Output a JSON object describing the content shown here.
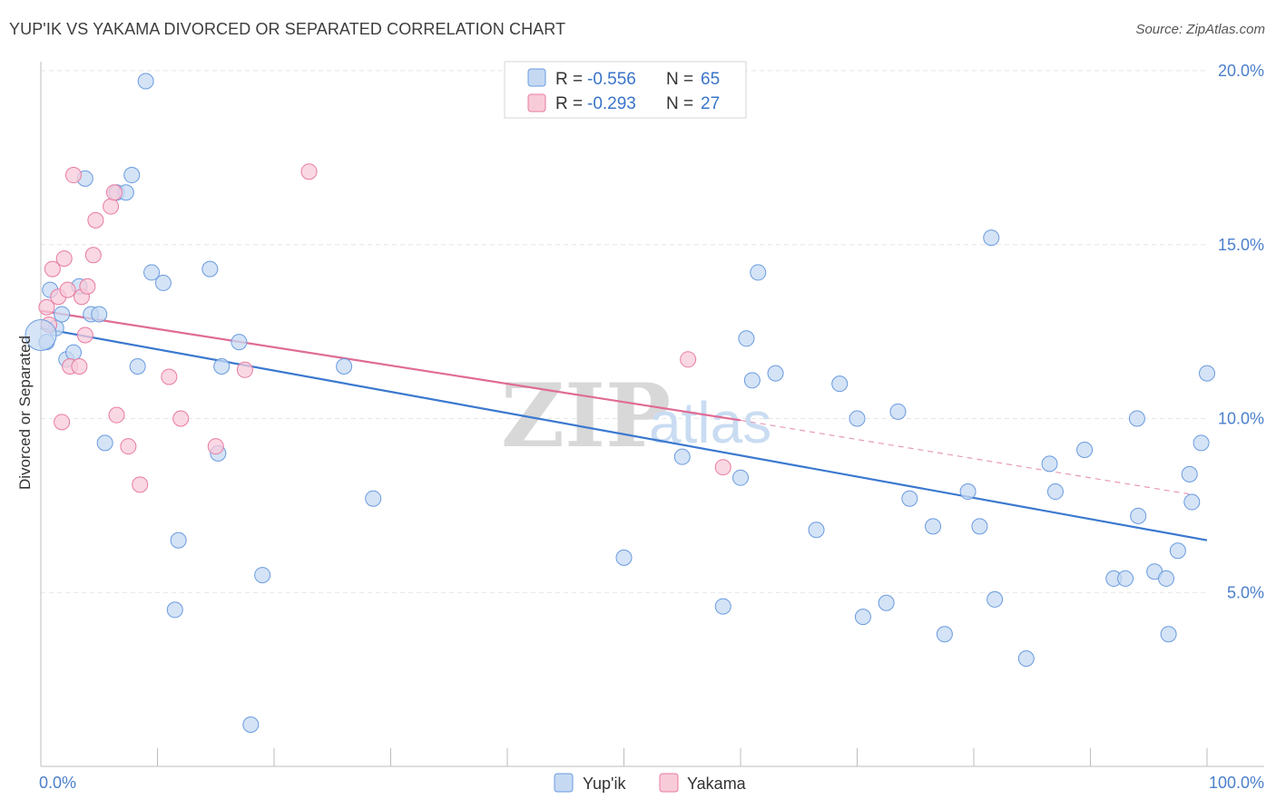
{
  "header": {
    "title": "YUP'IK VS YAKAMA DIVORCED OR SEPARATED CORRELATION CHART",
    "source": "Source: ZipAtlas.com"
  },
  "watermark": {
    "zip": "ZIP",
    "atlas": "atlas"
  },
  "chart_data": {
    "type": "scatter",
    "ylabel": "Divorced or Separated",
    "xlim": [
      0,
      100
    ],
    "ylim": [
      0,
      20
    ],
    "x_ticks": [
      0,
      10,
      20,
      30,
      40,
      50,
      60,
      70,
      80,
      90,
      100
    ],
    "x_tick_labels": {
      "left": "0.0%",
      "right": "100.0%"
    },
    "y_ticks": [
      {
        "value": 5,
        "label": "5.0%"
      },
      {
        "value": 10,
        "label": "10.0%"
      },
      {
        "value": 15,
        "label": "15.0%"
      },
      {
        "value": 20,
        "label": "20.0%"
      }
    ],
    "grid": true,
    "legend": {
      "position": "top-center",
      "entries": [
        {
          "r_label": "R =",
          "r_value": "-0.556",
          "n_label": "N =",
          "n_value": "65"
        },
        {
          "r_label": "R =",
          "r_value": "-0.293",
          "n_label": "N =",
          "n_value": "27"
        }
      ]
    },
    "series": [
      {
        "name": "Yup'ik",
        "color": "#6a9be0",
        "fill": "#c5d9f3",
        "trend": {
          "x0": 0,
          "y0": 12.6,
          "x1": 100,
          "y1": 6.5,
          "style": "solid"
        },
        "points": [
          [
            0.5,
            12.2
          ],
          [
            0.8,
            13.7
          ],
          [
            1.3,
            12.6
          ],
          [
            1.8,
            13.0
          ],
          [
            2.2,
            11.7
          ],
          [
            2.8,
            11.9
          ],
          [
            3.3,
            13.8
          ],
          [
            3.8,
            16.9
          ],
          [
            4.3,
            13.0
          ],
          [
            5.0,
            13.0
          ],
          [
            5.5,
            9.3
          ],
          [
            6.5,
            16.5
          ],
          [
            7.3,
            16.5
          ],
          [
            7.8,
            17.0
          ],
          [
            8.3,
            11.5
          ],
          [
            9.0,
            19.7
          ],
          [
            9.5,
            14.2
          ],
          [
            10.5,
            13.9
          ],
          [
            11.5,
            4.5
          ],
          [
            11.8,
            6.5
          ],
          [
            14.5,
            14.3
          ],
          [
            15.5,
            11.5
          ],
          [
            15.2,
            9.0
          ],
          [
            17.0,
            12.2
          ],
          [
            18.0,
            1.2
          ],
          [
            19.0,
            5.5
          ],
          [
            26.0,
            11.5
          ],
          [
            28.5,
            7.7
          ],
          [
            50.0,
            6.0
          ],
          [
            55.0,
            8.9
          ],
          [
            58.5,
            4.6
          ],
          [
            60.0,
            8.3
          ],
          [
            60.5,
            12.3
          ],
          [
            61.0,
            11.1
          ],
          [
            61.5,
            14.2
          ],
          [
            63.0,
            11.3
          ],
          [
            66.5,
            6.8
          ],
          [
            68.5,
            11.0
          ],
          [
            70.0,
            10.0
          ],
          [
            70.5,
            4.3
          ],
          [
            72.5,
            4.7
          ],
          [
            73.5,
            10.2
          ],
          [
            74.5,
            7.7
          ],
          [
            76.5,
            6.9
          ],
          [
            77.5,
            3.8
          ],
          [
            79.5,
            7.9
          ],
          [
            80.5,
            6.9
          ],
          [
            81.5,
            15.2
          ],
          [
            81.8,
            4.8
          ],
          [
            84.5,
            3.1
          ],
          [
            86.5,
            8.7
          ],
          [
            87.0,
            7.9
          ],
          [
            89.5,
            9.1
          ],
          [
            92.0,
            5.4
          ],
          [
            93.0,
            5.4
          ],
          [
            94.0,
            10.0
          ],
          [
            94.1,
            7.2
          ],
          [
            95.5,
            5.6
          ],
          [
            96.5,
            5.4
          ],
          [
            96.7,
            3.8
          ],
          [
            97.5,
            6.2
          ],
          [
            98.5,
            8.4
          ],
          [
            98.7,
            7.6
          ],
          [
            99.5,
            9.3
          ],
          [
            100.0,
            11.3
          ]
        ]
      },
      {
        "name": "Yakama",
        "color": "#e87ba0",
        "fill": "#f8cbd9",
        "trend": {
          "x0": 0,
          "y0": 13.1,
          "x1": 60,
          "y1": 9.95,
          "x_ext": 99,
          "y_ext": 7.8,
          "style": "solid+dashed"
        },
        "points": [
          [
            0.5,
            13.2
          ],
          [
            0.7,
            12.7
          ],
          [
            1.0,
            14.3
          ],
          [
            1.5,
            13.5
          ],
          [
            2.0,
            14.6
          ],
          [
            2.3,
            13.7
          ],
          [
            1.8,
            9.9
          ],
          [
            2.5,
            11.5
          ],
          [
            2.8,
            17.0
          ],
          [
            3.3,
            11.5
          ],
          [
            3.5,
            13.5
          ],
          [
            3.8,
            12.4
          ],
          [
            4.0,
            13.8
          ],
          [
            4.5,
            14.7
          ],
          [
            4.7,
            15.7
          ],
          [
            6.0,
            16.1
          ],
          [
            6.3,
            16.5
          ],
          [
            6.5,
            10.1
          ],
          [
            7.5,
            9.2
          ],
          [
            8.5,
            8.1
          ],
          [
            11.0,
            11.2
          ],
          [
            12.0,
            10.0
          ],
          [
            15.0,
            9.2
          ],
          [
            17.5,
            11.4
          ],
          [
            23.0,
            17.1
          ],
          [
            55.5,
            11.7
          ],
          [
            58.5,
            8.6
          ]
        ]
      }
    ]
  }
}
